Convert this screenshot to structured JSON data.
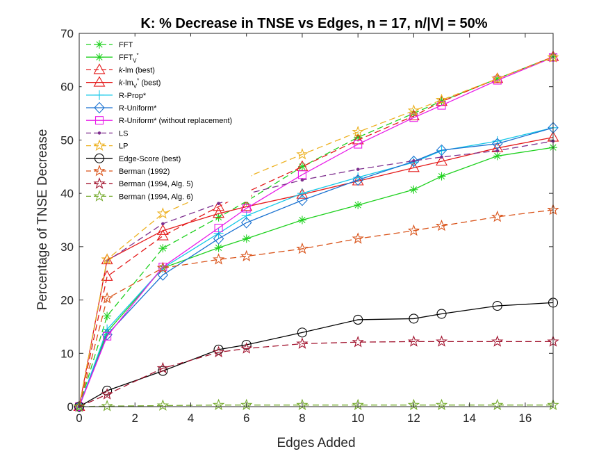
{
  "chart_data": {
    "type": "line",
    "title": "K: % Decrease in TNSE vs Edges, n = 17, n/|V| = 50%",
    "xlabel": "Edges Added",
    "ylabel": "Percentage of TNSE Decrease",
    "xlim": [
      0,
      17
    ],
    "ylim": [
      0,
      70
    ],
    "xticks": [
      0,
      2,
      4,
      6,
      8,
      10,
      12,
      14,
      16
    ],
    "yticks": [
      0,
      10,
      20,
      30,
      40,
      50,
      60,
      70
    ],
    "grid": false,
    "legend_position": "top-left",
    "series": [
      {
        "key": "fft",
        "name": "FFT",
        "color": "#1fd11f",
        "dash": "dashed",
        "marker": "asterisk",
        "points": [
          [
            0,
            0
          ],
          [
            1,
            17
          ],
          [
            3,
            29.7
          ],
          [
            5,
            35.5
          ],
          [
            6,
            38.5
          ],
          [
            8,
            45
          ],
          [
            10,
            50.5
          ],
          [
            12,
            55
          ],
          [
            13,
            57.3
          ],
          [
            15,
            61.5
          ],
          [
            17,
            65.6
          ]
        ]
      },
      {
        "key": "fftv",
        "name": "FFT",
        "sub": "V",
        "sup": "*",
        "color": "#1fd11f",
        "dash": "solid",
        "marker": "asterisk",
        "points": [
          [
            0,
            0
          ],
          [
            1,
            14
          ],
          [
            3,
            26
          ],
          [
            5,
            29.8
          ],
          [
            6,
            31.5
          ],
          [
            8,
            35
          ],
          [
            10,
            37.8
          ],
          [
            12,
            40.7
          ],
          [
            13,
            43.2
          ],
          [
            15,
            47
          ],
          [
            17,
            48.6
          ]
        ]
      },
      {
        "key": "klm",
        "name": "k-lm (best)",
        "ital": "k",
        "rest": "-lm (best)",
        "color": "#e41a1a",
        "dash": "dashed",
        "marker": "triangle",
        "points": [
          [
            0,
            0
          ],
          [
            1,
            24.4
          ],
          [
            3,
            32
          ],
          [
            5,
            37.5
          ],
          [
            6,
            40.2
          ],
          [
            8,
            45
          ],
          [
            10,
            50
          ],
          [
            12,
            54.5
          ],
          [
            13,
            57.2
          ],
          [
            15,
            61.5
          ],
          [
            17,
            65.6
          ]
        ]
      },
      {
        "key": "klmv",
        "name": "k-lmV* (best)",
        "ital": "k",
        "rest": "-lm",
        "sub": "V",
        "sup": "*",
        "tail": " (best)",
        "color": "#e41a1a",
        "dash": "solid",
        "marker": "triangle",
        "points": [
          [
            0,
            0
          ],
          [
            1,
            27.5
          ],
          [
            3,
            33
          ],
          [
            5,
            36.2
          ],
          [
            6,
            37.5
          ],
          [
            8,
            39.8
          ],
          [
            10,
            42.3
          ],
          [
            12,
            44.8
          ],
          [
            13,
            46
          ],
          [
            15,
            48.5
          ],
          [
            17,
            50.5
          ]
        ]
      },
      {
        "key": "rprop",
        "name": "R-Prop*",
        "color": "#16c8e8",
        "dash": "solid",
        "marker": "plus",
        "points": [
          [
            0,
            0
          ],
          [
            1,
            14.5
          ],
          [
            3,
            26
          ],
          [
            5,
            32.5
          ],
          [
            6,
            35.8
          ],
          [
            8,
            40
          ],
          [
            10,
            43
          ],
          [
            12,
            45.8
          ],
          [
            13,
            48
          ],
          [
            15,
            49.8
          ],
          [
            17,
            52.3
          ]
        ]
      },
      {
        "key": "runif",
        "name": "R-Uniform*",
        "color": "#1a72d1",
        "dash": "solid",
        "marker": "diamond",
        "points": [
          [
            0,
            0
          ],
          [
            1,
            13.5
          ],
          [
            3,
            24.7
          ],
          [
            5,
            31.5
          ],
          [
            6,
            34.5
          ],
          [
            8,
            38.7
          ],
          [
            10,
            42.5
          ],
          [
            12,
            46
          ],
          [
            13,
            48.1
          ],
          [
            15,
            49.3
          ],
          [
            17,
            52.3
          ]
        ]
      },
      {
        "key": "runifw",
        "name": "R-Uniform* (without replacement)",
        "color": "#e81ae8",
        "dash": "solid",
        "marker": "square",
        "points": [
          [
            0,
            0
          ],
          [
            1,
            13.2
          ],
          [
            3,
            26.2
          ],
          [
            5,
            33.5
          ],
          [
            6,
            37.2
          ],
          [
            8,
            43.5
          ],
          [
            10,
            49.2
          ],
          [
            12,
            54.2
          ],
          [
            13,
            56.5
          ],
          [
            15,
            61.2
          ],
          [
            17,
            65.5
          ]
        ]
      },
      {
        "key": "ls",
        "name": "LS",
        "color": "#7e2f8e",
        "dash": "dashed",
        "marker": "dot",
        "points": [
          [
            0,
            0
          ],
          [
            1,
            27.3
          ],
          [
            3,
            34.3
          ],
          [
            5,
            38.1
          ],
          [
            6,
            39.9
          ],
          [
            8,
            42.5
          ],
          [
            10,
            44.5
          ],
          [
            12,
            46.1
          ],
          [
            13,
            46.8
          ],
          [
            15,
            48
          ],
          [
            17,
            49.8
          ]
        ]
      },
      {
        "key": "lp",
        "name": "LP",
        "color": "#edb120",
        "dash": "dashed",
        "marker": "star",
        "points": [
          [
            0,
            0
          ],
          [
            1,
            27.6
          ],
          [
            3,
            36.2
          ],
          [
            5,
            40.8
          ],
          [
            6,
            43
          ],
          [
            8,
            47.3
          ],
          [
            10,
            51.5
          ],
          [
            12,
            55.5
          ],
          [
            13,
            57.5
          ],
          [
            15,
            61.5
          ],
          [
            17,
            65.5
          ]
        ]
      },
      {
        "key": "edge",
        "name": "Edge-Score (best)",
        "color": "#000000",
        "dash": "solid",
        "marker": "circle",
        "points": [
          [
            0,
            0
          ],
          [
            1,
            3
          ],
          [
            3,
            6.7
          ],
          [
            5,
            10.7
          ],
          [
            6,
            11.6
          ],
          [
            8,
            13.9
          ],
          [
            10,
            16.3
          ],
          [
            12,
            16.5
          ],
          [
            13,
            17.4
          ],
          [
            15,
            18.9
          ],
          [
            17,
            19.5
          ]
        ]
      },
      {
        "key": "b1992",
        "name": "Berman (1992)",
        "color": "#d95319",
        "dash": "dashed",
        "marker": "star",
        "points": [
          [
            0,
            0
          ],
          [
            1,
            20.3
          ],
          [
            3,
            26
          ],
          [
            5,
            27.6
          ],
          [
            6,
            28.2
          ],
          [
            8,
            29.6
          ],
          [
            10,
            31.5
          ],
          [
            12,
            33
          ],
          [
            13,
            33.9
          ],
          [
            15,
            35.6
          ],
          [
            17,
            36.9
          ]
        ]
      },
      {
        "key": "b1994a5",
        "name": "Berman (1994, Alg. 5)",
        "color": "#a2142f",
        "dash": "dashed",
        "marker": "star",
        "points": [
          [
            0,
            0
          ],
          [
            1,
            2.3
          ],
          [
            3,
            7.2
          ],
          [
            5,
            10.2
          ],
          [
            6,
            10.9
          ],
          [
            8,
            11.8
          ],
          [
            10,
            12.1
          ],
          [
            12,
            12.2
          ],
          [
            13,
            12.2
          ],
          [
            15,
            12.2
          ],
          [
            17,
            12.2
          ]
        ]
      },
      {
        "key": "b1994a6",
        "name": "Berman (1994, Alg. 6)",
        "color": "#77ac30",
        "dash": "dashed",
        "marker": "star",
        "points": [
          [
            0,
            0
          ],
          [
            1,
            0.1
          ],
          [
            3,
            0.2
          ],
          [
            5,
            0.3
          ],
          [
            6,
            0.3
          ],
          [
            8,
            0.3
          ],
          [
            10,
            0.3
          ],
          [
            12,
            0.3
          ],
          [
            13,
            0.3
          ],
          [
            15,
            0.3
          ],
          [
            17,
            0.3
          ]
        ]
      }
    ]
  }
}
